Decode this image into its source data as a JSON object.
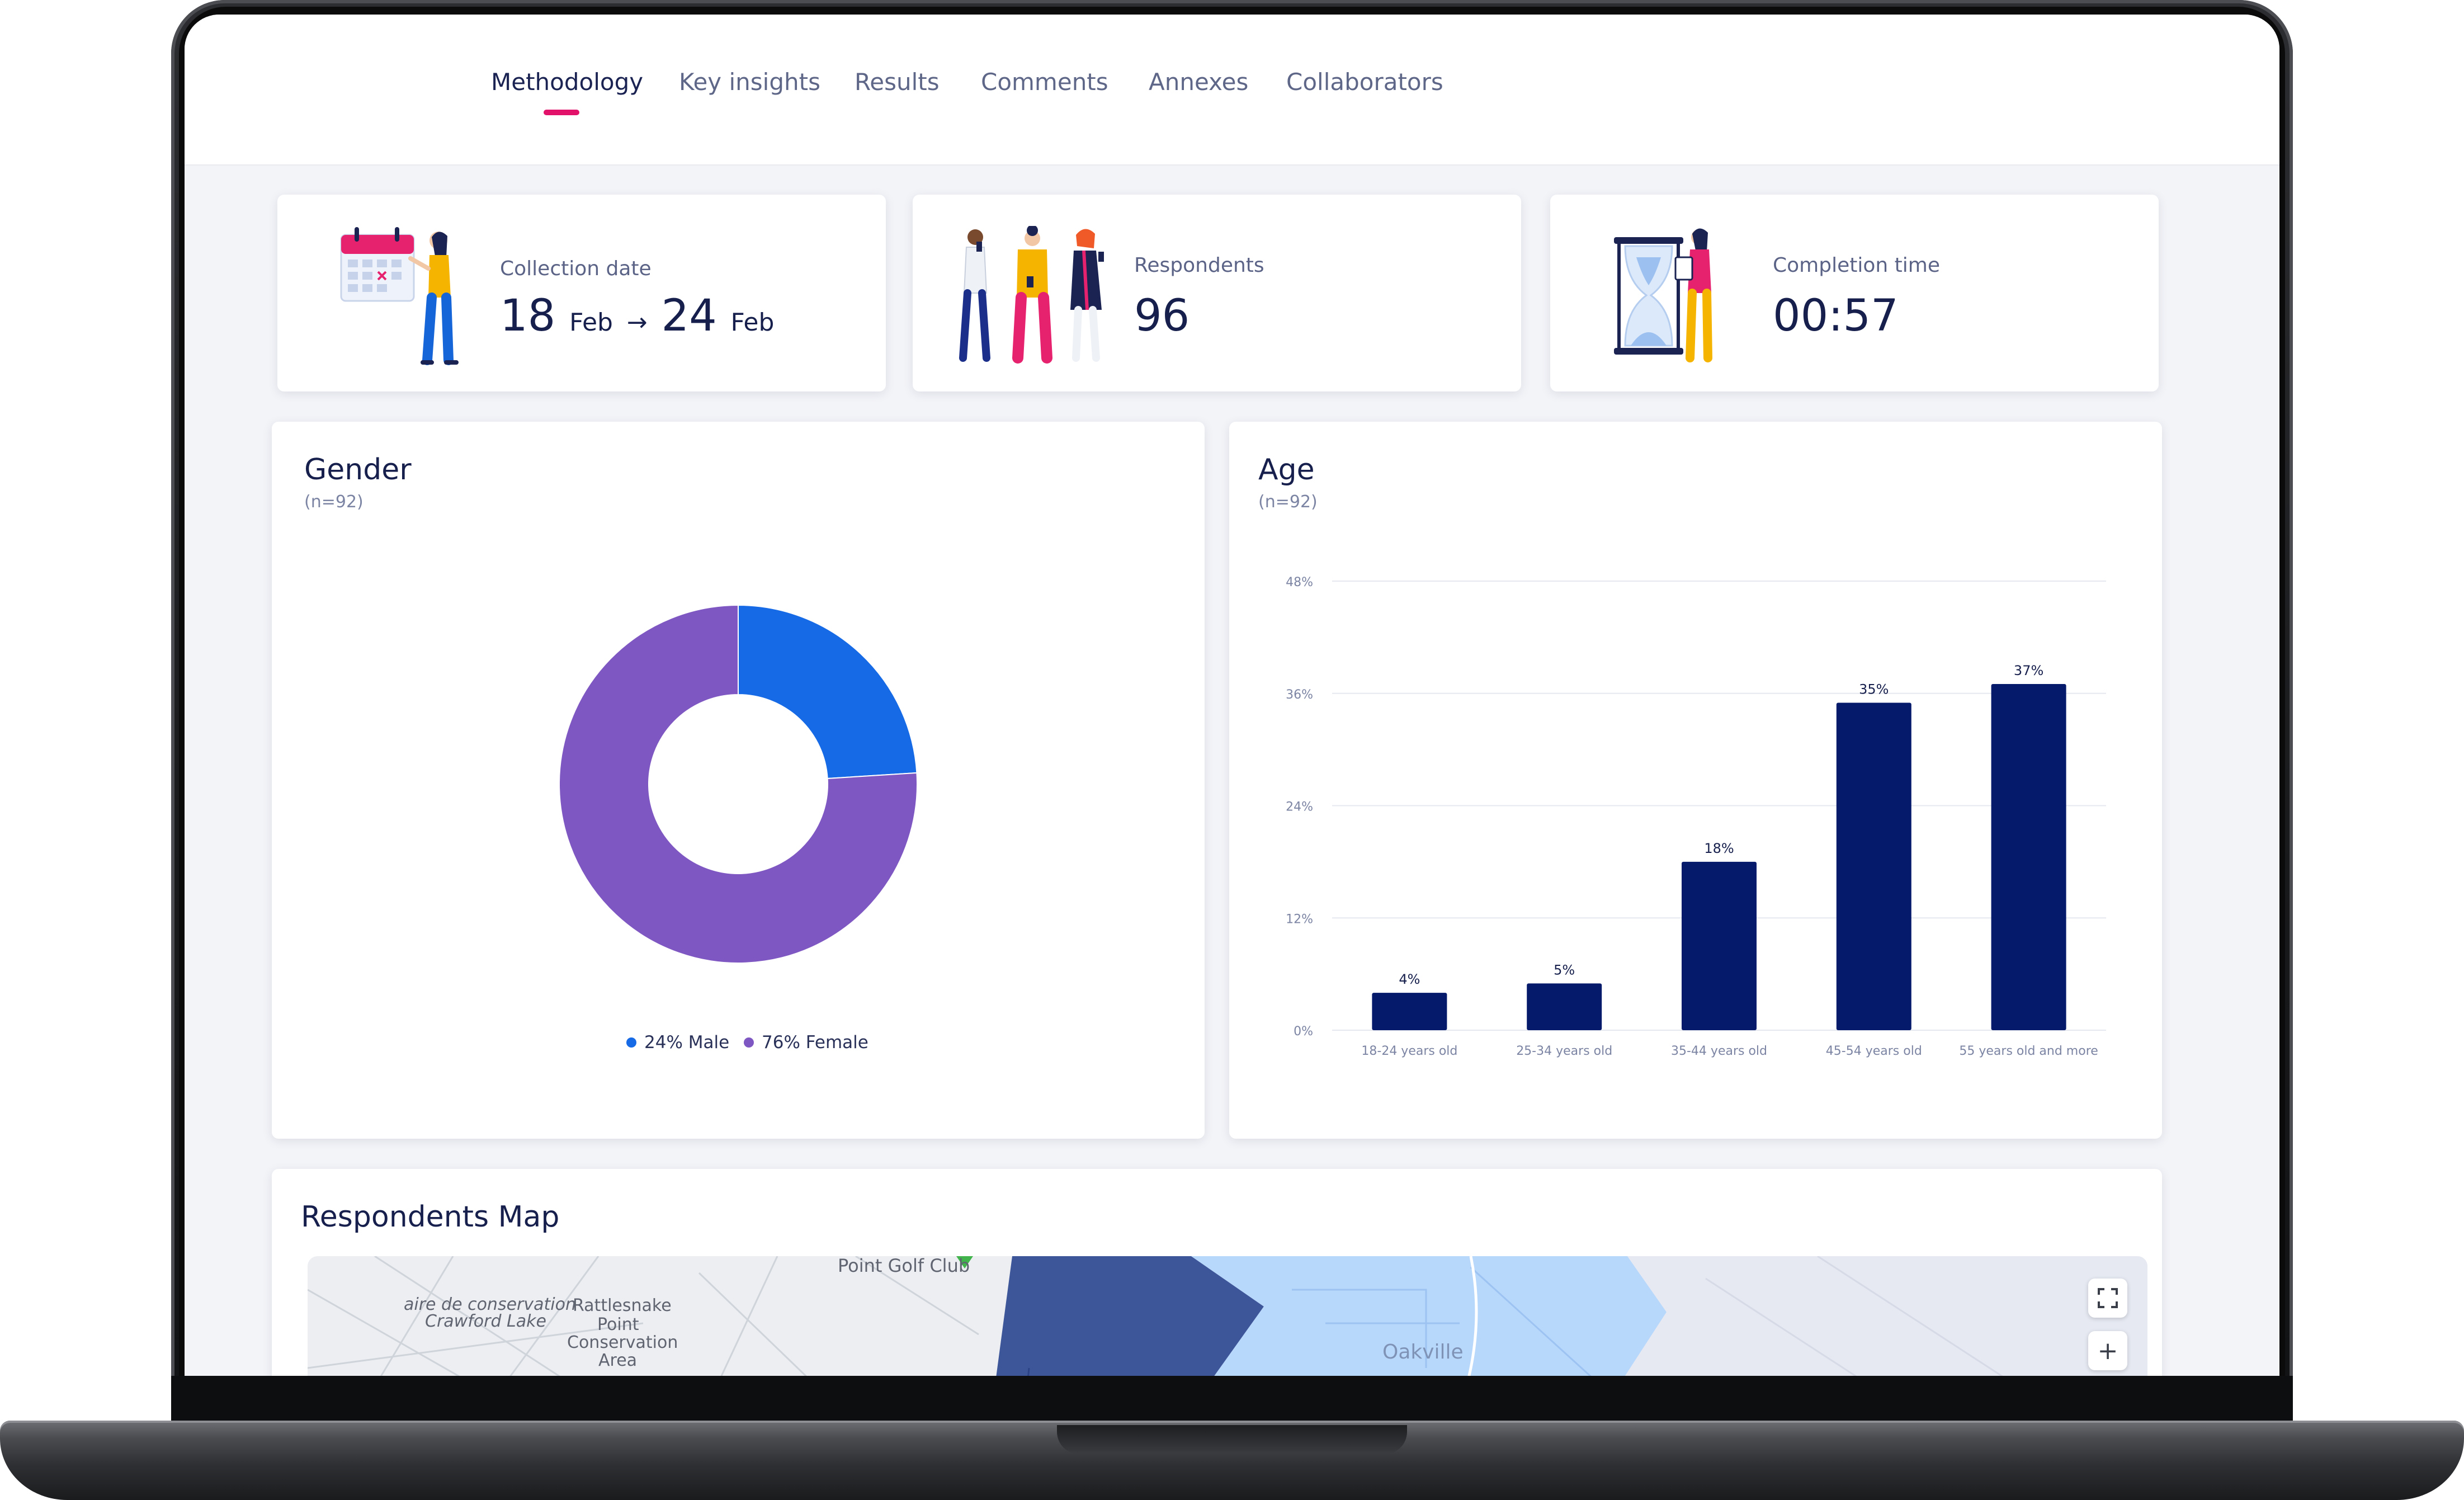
{
  "nav": {
    "tabs": [
      {
        "label": "Methodology",
        "active": true
      },
      {
        "label": "Key insights"
      },
      {
        "label": "Results"
      },
      {
        "label": "Comments"
      },
      {
        "label": "Annexes"
      },
      {
        "label": "Collaborators"
      }
    ],
    "active_color": "#e2126a"
  },
  "stats": {
    "collection": {
      "label": "Collection date",
      "start_day": "18",
      "start_month": "Feb",
      "arrow": "→",
      "end_day": "24",
      "end_month": "Feb",
      "icon": "calendar-person-illustration"
    },
    "respondents": {
      "label": "Respondents",
      "value": "96",
      "icon": "people-group-illustration"
    },
    "completion": {
      "label": "Completion time",
      "value": "00:57",
      "icon": "hourglass-person-illustration"
    }
  },
  "gender_card": {
    "title": "Gender",
    "subtitle": "(n=92)"
  },
  "age_card": {
    "title": "Age",
    "subtitle": "(n=92)"
  },
  "map_card": {
    "title": "Respondents Map",
    "labels": {
      "golf": "Point Golf Club",
      "aire1": "aire de conservation",
      "aire2": "Crawford Lake",
      "rattle1": "Rattlesnake",
      "rattle2": "Point",
      "rattle3": "Conservation",
      "rattle4": "Area",
      "oakville": "Oakville"
    },
    "fullscreen_icon": "fullscreen-icon",
    "zoom_in": "+"
  },
  "chart_data": [
    {
      "type": "pie",
      "title": "Gender",
      "subtitle": "(n=92)",
      "donut": true,
      "slices": [
        {
          "label": "24% Male",
          "name": "Male",
          "value": 24,
          "color": "#166ae6"
        },
        {
          "label": "76% Female",
          "name": "Female",
          "value": 76,
          "color": "#7e57c2"
        }
      ],
      "legend": "bottom"
    },
    {
      "type": "bar",
      "title": "Age",
      "subtitle": "(n=92)",
      "categories": [
        "18-24 years old",
        "25-34 years old",
        "35-44 years old",
        "45-54 years old",
        "55 years old and more"
      ],
      "values": [
        4,
        5,
        18,
        35,
        37
      ],
      "value_labels": [
        "4%",
        "5%",
        "18%",
        "35%",
        "37%"
      ],
      "yticks": [
        "0%",
        "12%",
        "24%",
        "36%",
        "48%"
      ],
      "ylim": [
        0,
        48
      ],
      "color": "#061a6b",
      "grid": true
    }
  ]
}
